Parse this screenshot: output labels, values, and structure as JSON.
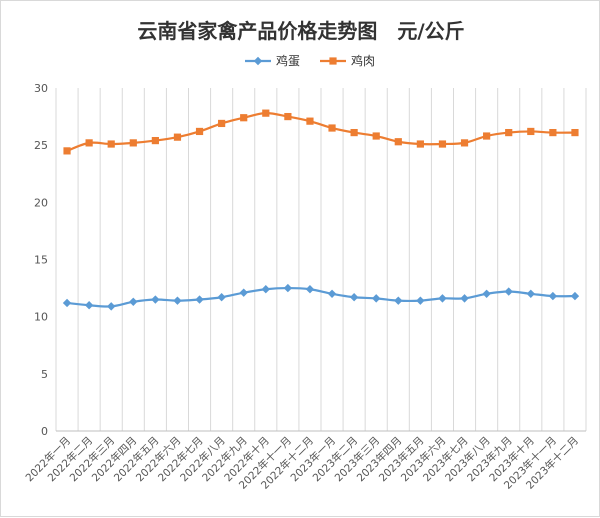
{
  "chart_data": {
    "type": "line",
    "title": "云南省家禽产品价格走势图　元/公斤",
    "xlabel": "",
    "ylabel": "",
    "ylim": [
      0,
      30
    ],
    "yticks": [
      0,
      5,
      10,
      15,
      20,
      25,
      30
    ],
    "grid": "vertical",
    "legend_position": "top",
    "categories": [
      "2022年一月",
      "2022年二月",
      "2022年三月",
      "2022年四月",
      "2022年五月",
      "2022年六月",
      "2022年七月",
      "2022年八月",
      "2022年九月",
      "2022年十月",
      "2022年十一月",
      "2022年十二月",
      "2023年一月",
      "2023年二月",
      "2023年三月",
      "2023年四月",
      "2023年五月",
      "2023年六月",
      "2023年七月",
      "2023年八月",
      "2023年九月",
      "2023年十月",
      "2023年十一月",
      "2023年十二月"
    ],
    "series": [
      {
        "name": "鸡蛋",
        "color": "#5B9BD5",
        "marker": "diamond",
        "values": [
          11.2,
          11.0,
          10.9,
          11.3,
          11.5,
          11.4,
          11.5,
          11.7,
          12.1,
          12.4,
          12.5,
          12.4,
          12.0,
          11.7,
          11.6,
          11.4,
          11.4,
          11.6,
          11.6,
          12.0,
          12.2,
          12.0,
          11.8,
          11.8
        ]
      },
      {
        "name": "鸡肉",
        "color": "#ED7D31",
        "marker": "square",
        "values": [
          24.5,
          25.2,
          25.1,
          25.2,
          25.4,
          25.7,
          26.2,
          26.9,
          27.4,
          27.8,
          27.5,
          27.1,
          26.5,
          26.1,
          25.8,
          25.3,
          25.1,
          25.1,
          25.2,
          25.8,
          26.1,
          26.2,
          26.1,
          26.1
        ]
      }
    ]
  }
}
